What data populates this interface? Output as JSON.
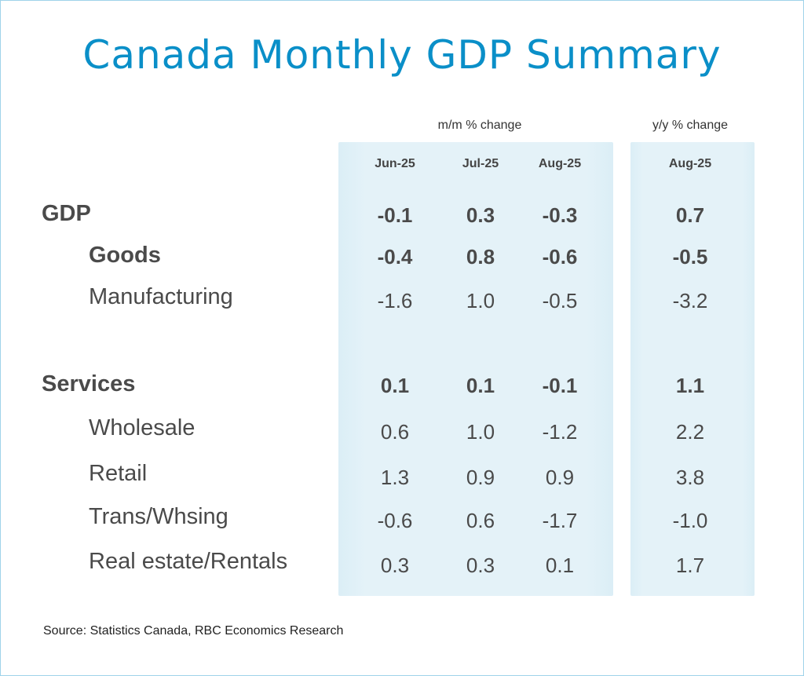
{
  "title": "Canada Monthly GDP Summary",
  "chart_data": {
    "type": "table",
    "title": "Canada Monthly GDP Summary",
    "column_groups": [
      "m/m % change",
      "y/y % change"
    ],
    "columns": [
      "Jun-25",
      "Jul-25",
      "Aug-25",
      "Aug-25"
    ],
    "rows": [
      {
        "label": "GDP",
        "bold": true,
        "values": [
          "-0.1",
          "0.3",
          "-0.3",
          "0.7"
        ]
      },
      {
        "label": "Goods",
        "bold": true,
        "values": [
          "-0.4",
          "0.8",
          "-0.6",
          "-0.5"
        ]
      },
      {
        "label": "Manufacturing",
        "bold": false,
        "values": [
          "-1.6",
          "1.0",
          "-0.5",
          "-3.2"
        ]
      },
      {
        "label": "Services",
        "bold": true,
        "values": [
          "0.1",
          "0.1",
          "-0.1",
          "1.1"
        ]
      },
      {
        "label": "Wholesale",
        "bold": false,
        "values": [
          "0.6",
          "1.0",
          "-1.2",
          "2.2"
        ]
      },
      {
        "label": "Retail",
        "bold": false,
        "values": [
          "1.3",
          "0.9",
          "0.9",
          "3.8"
        ]
      },
      {
        "label": "Trans/Whsing",
        "bold": false,
        "values": [
          "-0.6",
          "0.6",
          "-1.7",
          "-1.0"
        ]
      },
      {
        "label": "Real estate/Rentals",
        "bold": false,
        "values": [
          "0.3",
          "0.3",
          "0.1",
          "1.7"
        ]
      }
    ]
  },
  "source": "Source:  Statistics Canada, RBC Economics Research",
  "colors": {
    "title": "#0a8fc8",
    "panel": "#e4f2f8",
    "text": "#4a4a4a"
  }
}
